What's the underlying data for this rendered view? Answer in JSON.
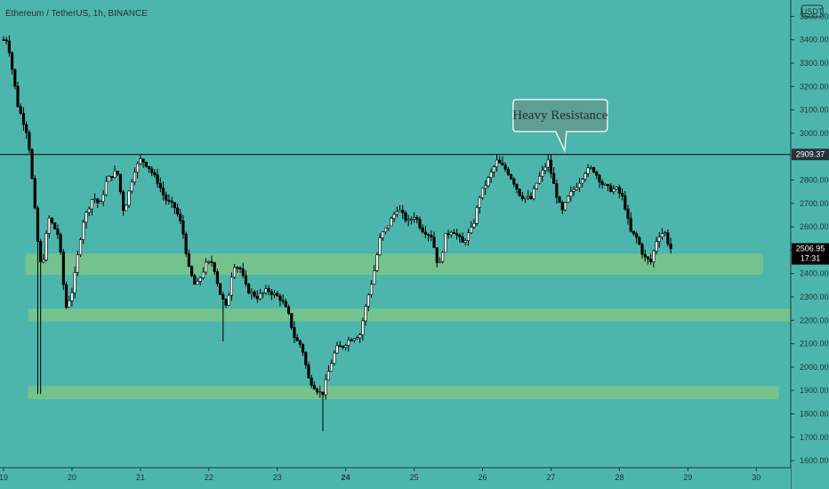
{
  "chart_data": {
    "type": "candlestick",
    "title": "Ethereum / TetherUS, 1h, BINANCE",
    "currency_badge": "USDT",
    "price_axis": {
      "min": 1570,
      "max": 3570,
      "ticks": [
        1600,
        1700,
        1800,
        1900,
        2000,
        2100,
        2200,
        2300,
        2400,
        2500,
        2600,
        2700,
        2800,
        2900,
        3000,
        3100,
        3200,
        3300,
        3400,
        3500
      ],
      "tick_labels": [
        "1600.00",
        "1700.00",
        "1800.00",
        "1900.00",
        "2000.00",
        "2100.00",
        "2200.00",
        "2300.00",
        "2400.00",
        "2500.00",
        "2600.00",
        "2700.00",
        "2800.00",
        "2900.00",
        "3000.00",
        "3100.00",
        "3200.00",
        "3300.00",
        "3400.00",
        "3500.00"
      ]
    },
    "time_axis": {
      "labels": [
        "19",
        "20",
        "21",
        "22",
        "23",
        "24",
        "25",
        "26",
        "27",
        "28",
        "29",
        "30"
      ],
      "bold_labels": [
        "24"
      ],
      "start_day": 19,
      "end_day": 30.4
    },
    "resistance_line": {
      "price": 2909.37,
      "label": "2909.37"
    },
    "current_price": {
      "label": "2506.95",
      "countdown": "17:31",
      "price": 2507
    },
    "support_zones": [
      {
        "from_day": 19.32,
        "to_day": 30.1,
        "low": 2395,
        "high": 2485
      },
      {
        "from_day": 19.36,
        "to_day": 30.6,
        "low": 2195,
        "high": 2250
      },
      {
        "from_day": 19.36,
        "to_day": 30.33,
        "low": 1862,
        "high": 1918
      }
    ],
    "annotation": {
      "text": "Heavy Resistance",
      "at_day": 27.2,
      "at_price": 2910
    },
    "path_keypoints": [
      [
        19.0,
        3400
      ],
      [
        19.1,
        3400
      ],
      [
        19.25,
        3120
      ],
      [
        19.4,
        2990
      ],
      [
        19.55,
        2510
      ],
      [
        19.6,
        2410
      ],
      [
        19.7,
        2640
      ],
      [
        19.85,
        2560
      ],
      [
        19.95,
        2250
      ],
      [
        20.05,
        2330
      ],
      [
        20.2,
        2620
      ],
      [
        20.35,
        2730
      ],
      [
        20.45,
        2690
      ],
      [
        20.55,
        2800
      ],
      [
        20.7,
        2840
      ],
      [
        20.8,
        2660
      ],
      [
        20.95,
        2840
      ],
      [
        21.05,
        2890
      ],
      [
        21.15,
        2860
      ],
      [
        21.3,
        2790
      ],
      [
        21.4,
        2720
      ],
      [
        21.55,
        2680
      ],
      [
        21.65,
        2600
      ],
      [
        21.75,
        2420
      ],
      [
        21.85,
        2340
      ],
      [
        22.0,
        2440
      ],
      [
        22.1,
        2450
      ],
      [
        22.2,
        2320
      ],
      [
        22.3,
        2250
      ],
      [
        22.4,
        2440
      ],
      [
        22.5,
        2420
      ],
      [
        22.6,
        2330
      ],
      [
        22.75,
        2300
      ],
      [
        22.9,
        2330
      ],
      [
        23.0,
        2310
      ],
      [
        23.1,
        2290
      ],
      [
        23.2,
        2230
      ],
      [
        23.3,
        2120
      ],
      [
        23.4,
        2090
      ],
      [
        23.5,
        1950
      ],
      [
        23.6,
        1910
      ],
      [
        23.7,
        1880
      ],
      [
        23.8,
        1990
      ],
      [
        23.9,
        2080
      ],
      [
        24.0,
        2090
      ],
      [
        24.1,
        2120
      ],
      [
        24.25,
        2140
      ],
      [
        24.35,
        2280
      ],
      [
        24.45,
        2400
      ],
      [
        24.55,
        2560
      ],
      [
        24.65,
        2600
      ],
      [
        24.8,
        2680
      ],
      [
        24.95,
        2620
      ],
      [
        25.05,
        2650
      ],
      [
        25.15,
        2590
      ],
      [
        25.3,
        2560
      ],
      [
        25.4,
        2420
      ],
      [
        25.5,
        2560
      ],
      [
        25.6,
        2590
      ],
      [
        25.75,
        2530
      ],
      [
        25.9,
        2600
      ],
      [
        26.0,
        2730
      ],
      [
        26.15,
        2820
      ],
      [
        26.25,
        2880
      ],
      [
        26.4,
        2840
      ],
      [
        26.5,
        2790
      ],
      [
        26.6,
        2730
      ],
      [
        26.75,
        2720
      ],
      [
        26.85,
        2800
      ],
      [
        27.0,
        2880
      ],
      [
        27.1,
        2760
      ],
      [
        27.2,
        2660
      ],
      [
        27.3,
        2730
      ],
      [
        27.45,
        2790
      ],
      [
        27.55,
        2840
      ],
      [
        27.65,
        2850
      ],
      [
        27.8,
        2780
      ],
      [
        27.9,
        2760
      ],
      [
        28.0,
        2760
      ],
      [
        28.1,
        2720
      ],
      [
        28.2,
        2580
      ],
      [
        28.3,
        2550
      ],
      [
        28.4,
        2470
      ],
      [
        28.5,
        2450
      ],
      [
        28.6,
        2560
      ],
      [
        28.7,
        2580
      ],
      [
        28.78,
        2507
      ]
    ],
    "colors": {
      "background": "#4db6ac",
      "candle_up": "#ffffff",
      "candle_down": "#000000",
      "wick": "#000000",
      "zone": "#81c784",
      "axis_text": "#263238",
      "callout_fill": "#5f9e94"
    }
  }
}
